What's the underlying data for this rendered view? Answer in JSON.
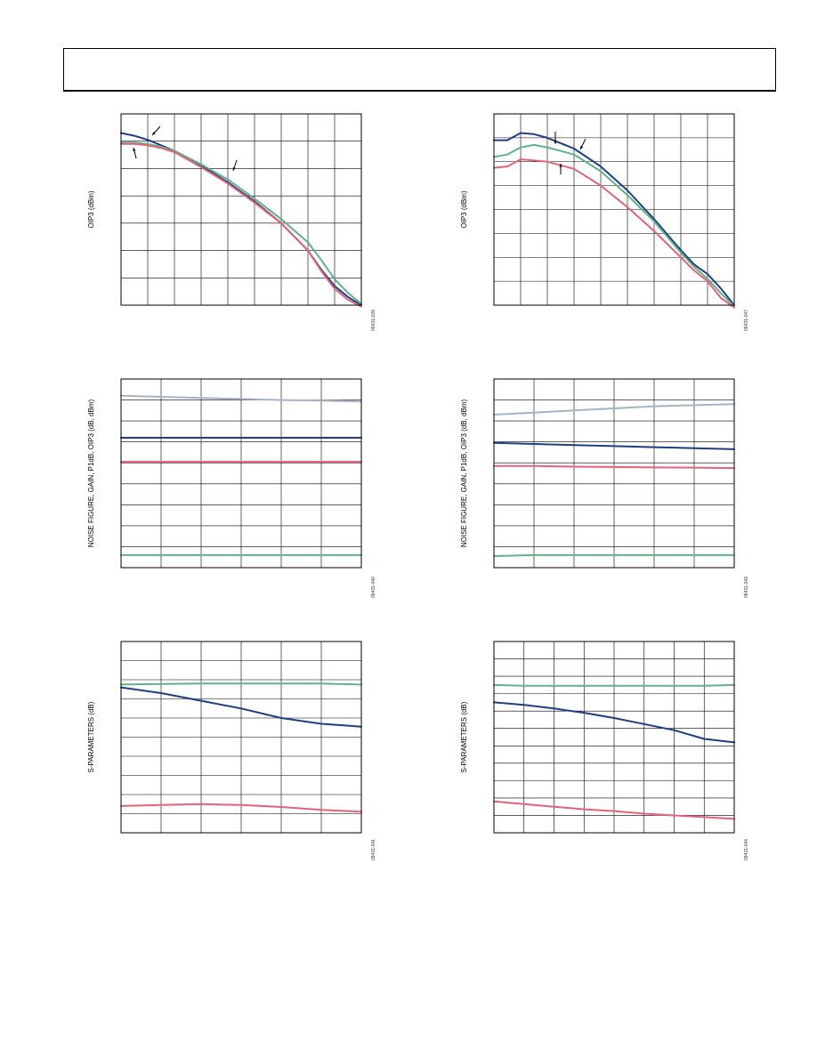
{
  "header": {
    "text": ""
  },
  "colors": {
    "navy": "#1f3f85",
    "green": "#5fb38a",
    "pink": "#e56277",
    "gray": "#a6b4c8",
    "grid": "#000000"
  },
  "chart_data": [
    {
      "type": "line",
      "title": "",
      "ylabel": "OIP3 (dBm)",
      "xlabel": "",
      "figure_id": "09431-029",
      "grid": true,
      "x_divisions": 9,
      "y_divisions": 7,
      "xlim": [
        0,
        9
      ],
      "ylim": [
        0,
        7
      ],
      "series": [
        {
          "color": "navy",
          "x": [
            0,
            0.5,
            1,
            1.5,
            2,
            3,
            4,
            5,
            6,
            7,
            7.5,
            8,
            8.5,
            9
          ],
          "y": [
            6.3,
            6.2,
            6.05,
            5.85,
            5.65,
            5.1,
            4.5,
            3.8,
            3.0,
            2.0,
            1.3,
            0.7,
            0.3,
            0
          ]
        },
        {
          "color": "green",
          "x": [
            0,
            0.5,
            1,
            1.5,
            2,
            3,
            4,
            5,
            6,
            7,
            7.5,
            8,
            8.5,
            9
          ],
          "y": [
            5.95,
            5.95,
            5.9,
            5.8,
            5.65,
            5.15,
            4.6,
            3.9,
            3.15,
            2.3,
            1.65,
            0.95,
            0.45,
            0.05
          ]
        },
        {
          "color": "pink",
          "x": [
            0,
            0.5,
            1,
            1.5,
            2,
            3,
            4,
            5,
            6,
            7,
            7.5,
            8,
            8.5,
            9
          ],
          "y": [
            5.9,
            5.9,
            5.85,
            5.75,
            5.6,
            5.05,
            4.45,
            3.75,
            3.0,
            2.0,
            1.25,
            0.6,
            0.2,
            -0.05
          ]
        }
      ]
    },
    {
      "type": "line",
      "title": "",
      "ylabel": "OIP3 (dBm)",
      "xlabel": "",
      "figure_id": "09431-047",
      "grid": true,
      "x_divisions": 9,
      "y_divisions": 8,
      "xlim": [
        0,
        9
      ],
      "ylim": [
        0,
        8
      ],
      "series": [
        {
          "color": "navy",
          "x": [
            0,
            0.5,
            1,
            1.5,
            2,
            3,
            4,
            5,
            6,
            7,
            7.5,
            8,
            8.5,
            9
          ],
          "y": [
            6.9,
            6.9,
            7.2,
            7.15,
            7.0,
            6.55,
            5.8,
            4.8,
            3.6,
            2.3,
            1.7,
            1.3,
            0.7,
            0
          ]
        },
        {
          "color": "green",
          "x": [
            0,
            0.5,
            1,
            1.5,
            2,
            3,
            4,
            5,
            6,
            7,
            7.5,
            8,
            8.5,
            9
          ],
          "y": [
            6.2,
            6.3,
            6.6,
            6.7,
            6.6,
            6.3,
            5.6,
            4.6,
            3.5,
            2.2,
            1.6,
            1.1,
            0.5,
            -0.05
          ]
        },
        {
          "color": "pink",
          "x": [
            0,
            0.5,
            1,
            1.5,
            2,
            3,
            4,
            5,
            6,
            7,
            7.5,
            8,
            8.5,
            9
          ],
          "y": [
            5.75,
            5.8,
            6.1,
            6.05,
            6.0,
            5.7,
            5.0,
            4.1,
            3.1,
            2.0,
            1.45,
            1.0,
            0.3,
            -0.1
          ]
        }
      ]
    },
    {
      "type": "line",
      "title": "",
      "ylabel": "NOISE FIGURE, GAIN, P1dB, OIP3 (dB, dBm)",
      "xlabel": "",
      "figure_id": "09431-040",
      "grid": true,
      "x_divisions": 6,
      "y_divisions": 9,
      "xlim": [
        0,
        6
      ],
      "ylim": [
        0,
        9
      ],
      "series": [
        {
          "color": "gray",
          "x": [
            0,
            1,
            2,
            3,
            4,
            5,
            6
          ],
          "y": [
            8.2,
            8.15,
            8.1,
            8.05,
            8.0,
            7.97,
            7.93
          ]
        },
        {
          "color": "navy",
          "x": [
            0,
            1,
            2,
            3,
            4,
            5,
            6
          ],
          "y": [
            6.2,
            6.2,
            6.2,
            6.2,
            6.2,
            6.2,
            6.2
          ]
        },
        {
          "color": "pink",
          "x": [
            0,
            1,
            2,
            3,
            4,
            5,
            6
          ],
          "y": [
            5.05,
            5.05,
            5.05,
            5.05,
            5.05,
            5.05,
            5.05
          ]
        },
        {
          "color": "green",
          "x": [
            0,
            1,
            2,
            3,
            4,
            5,
            6
          ],
          "y": [
            0.6,
            0.6,
            0.6,
            0.6,
            0.6,
            0.6,
            0.6
          ]
        }
      ]
    },
    {
      "type": "line",
      "title": "",
      "ylabel": "NOISE FIGURE, GAIN, P1dB, OIP3 (dB, dBm)",
      "xlabel": "",
      "figure_id": "09431-043",
      "grid": true,
      "x_divisions": 6,
      "y_divisions": 9,
      "xlim": [
        0,
        6
      ],
      "ylim": [
        0,
        9
      ],
      "series": [
        {
          "color": "gray",
          "x": [
            0,
            1,
            2,
            3,
            4,
            5,
            6
          ],
          "y": [
            7.3,
            7.4,
            7.5,
            7.6,
            7.7,
            7.75,
            7.8
          ]
        },
        {
          "color": "navy",
          "x": [
            0,
            1,
            2,
            3,
            4,
            5,
            6
          ],
          "y": [
            5.95,
            5.9,
            5.85,
            5.8,
            5.75,
            5.7,
            5.65
          ]
        },
        {
          "color": "pink",
          "x": [
            0,
            1,
            2,
            3,
            4,
            5,
            6
          ],
          "y": [
            4.85,
            4.85,
            4.82,
            4.8,
            4.78,
            4.77,
            4.75
          ]
        },
        {
          "color": "green",
          "x": [
            0,
            1,
            2,
            3,
            4,
            5,
            6
          ],
          "y": [
            0.55,
            0.6,
            0.6,
            0.6,
            0.6,
            0.6,
            0.6
          ]
        }
      ]
    },
    {
      "type": "line",
      "title": "",
      "ylabel": "S-PARAMETERS (dB)",
      "xlabel": "",
      "figure_id": "09431-041",
      "grid": true,
      "x_divisions": 6,
      "y_divisions": 10,
      "xlim": [
        0,
        6
      ],
      "ylim": [
        0,
        10
      ],
      "series": [
        {
          "color": "green",
          "x": [
            0,
            1,
            2,
            3,
            4,
            5,
            6
          ],
          "y": [
            7.75,
            7.78,
            7.8,
            7.8,
            7.8,
            7.8,
            7.75
          ]
        },
        {
          "color": "navy",
          "x": [
            0,
            1,
            2,
            3,
            4,
            5,
            6
          ],
          "y": [
            7.6,
            7.3,
            6.9,
            6.5,
            6.0,
            5.7,
            5.55
          ]
        },
        {
          "color": "pink",
          "x": [
            0,
            1,
            2,
            3,
            4,
            5,
            6
          ],
          "y": [
            1.4,
            1.45,
            1.5,
            1.45,
            1.35,
            1.2,
            1.1
          ]
        }
      ]
    },
    {
      "type": "line",
      "title": "",
      "ylabel": "S-PARAMETERS (dB)",
      "xlabel": "",
      "figure_id": "09431-044",
      "grid": true,
      "x_divisions": 8,
      "y_divisions": 11,
      "xlim": [
        0,
        8
      ],
      "ylim": [
        0,
        11
      ],
      "series": [
        {
          "color": "green",
          "x": [
            0,
            1,
            2,
            3,
            4,
            5,
            6,
            7,
            8
          ],
          "y": [
            8.5,
            8.45,
            8.45,
            8.45,
            8.45,
            8.45,
            8.45,
            8.45,
            8.5
          ]
        },
        {
          "color": "navy",
          "x": [
            0,
            1,
            2,
            3,
            4,
            5,
            6,
            7,
            8
          ],
          "y": [
            7.5,
            7.35,
            7.15,
            6.9,
            6.6,
            6.25,
            5.9,
            5.4,
            5.2
          ]
        },
        {
          "color": "pink",
          "x": [
            0,
            1,
            2,
            3,
            4,
            5,
            6,
            7,
            8
          ],
          "y": [
            1.8,
            1.65,
            1.5,
            1.35,
            1.25,
            1.1,
            1.0,
            0.9,
            0.8
          ]
        }
      ]
    }
  ]
}
